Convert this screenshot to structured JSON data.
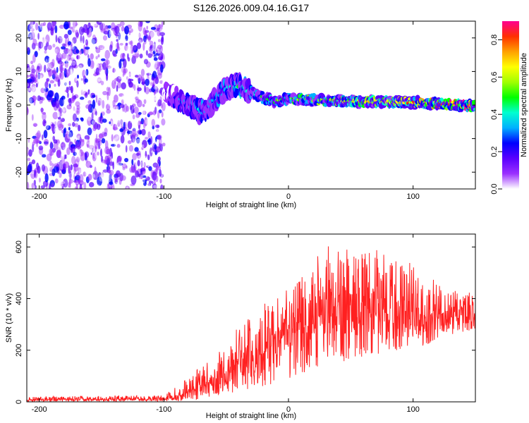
{
  "title": "S126.2026.009.04.16.G17",
  "chart_data": [
    {
      "type": "heatmap",
      "xlabel": "Height of straight line (km)",
      "ylabel": "Frequency (Hz)",
      "xlim": [
        -210,
        150
      ],
      "ylim": [
        -25,
        25
      ],
      "x_ticks": [
        -200,
        -100,
        0,
        100
      ],
      "y_ticks": [
        -20,
        -10,
        0,
        10,
        20
      ],
      "noise_region": {
        "x_range": [
          -210,
          -100
        ],
        "y_range": [
          -25,
          25
        ],
        "amplitude": [
          0.02,
          0.25
        ]
      },
      "signal_track": {
        "x": [
          -100,
          -90,
          -80,
          -70,
          -65,
          -60,
          -50,
          -40,
          -30,
          -20,
          -10,
          0,
          20,
          40,
          60,
          80,
          100,
          120,
          140,
          150
        ],
        "freq": [
          4,
          2,
          0,
          -2,
          -1,
          1,
          5,
          6,
          4,
          2,
          1,
          2,
          1.5,
          1.2,
          1,
          1,
          0.8,
          0.5,
          0,
          -0.5
        ],
        "amplitude": [
          0.1,
          0.25,
          0.3,
          0.3,
          0.28,
          0.3,
          0.35,
          0.4,
          0.35,
          0.4,
          0.45,
          0.5,
          0.5,
          0.55,
          0.55,
          0.6,
          0.65,
          0.75,
          0.9,
          0.7
        ]
      },
      "colorbar": {
        "label": "Normalized spectral amplitude",
        "range": [
          0.0,
          0.9
        ],
        "ticks": [
          "0.0",
          "0.2",
          "0.4",
          "0.6",
          "0.8"
        ],
        "colors": [
          "#ffffff",
          "#9b30ff",
          "#5a00ff",
          "#0000ff",
          "#00b0ff",
          "#00ffd0",
          "#00ff00",
          "#a0ff00",
          "#ffff00",
          "#ffa000",
          "#ff3000",
          "#ff0090"
        ]
      }
    },
    {
      "type": "line",
      "xlabel": "Height of straight line (km)",
      "ylabel": "SNR (10 * v/v)",
      "xlim": [
        -210,
        150
      ],
      "ylim": [
        0,
        650
      ],
      "x_ticks": [
        -200,
        -100,
        0,
        100
      ],
      "y_ticks": [
        0,
        200,
        400,
        600
      ],
      "color": "#ff2020",
      "envelope": {
        "x": [
          -210,
          -100,
          -90,
          -80,
          -70,
          -60,
          -50,
          -40,
          -30,
          -20,
          -10,
          0,
          10,
          20,
          30,
          40,
          50,
          60,
          70,
          80,
          90,
          100,
          110,
          120,
          130,
          140,
          150
        ],
        "min": [
          2,
          2,
          2,
          5,
          10,
          20,
          30,
          40,
          50,
          60,
          70,
          80,
          100,
          120,
          140,
          150,
          160,
          170,
          180,
          190,
          200,
          210,
          220,
          240,
          260,
          270,
          280
        ],
        "max": [
          20,
          25,
          60,
          100,
          140,
          180,
          240,
          300,
          350,
          380,
          420,
          460,
          500,
          560,
          600,
          620,
          600,
          580,
          590,
          610,
          580,
          540,
          500,
          460,
          440,
          430,
          420
        ],
        "mean": [
          8,
          10,
          20,
          40,
          60,
          80,
          110,
          140,
          170,
          200,
          230,
          260,
          280,
          300,
          320,
          330,
          330,
          330,
          335,
          340,
          340,
          340,
          340,
          340,
          345,
          350,
          330
        ]
      }
    }
  ]
}
